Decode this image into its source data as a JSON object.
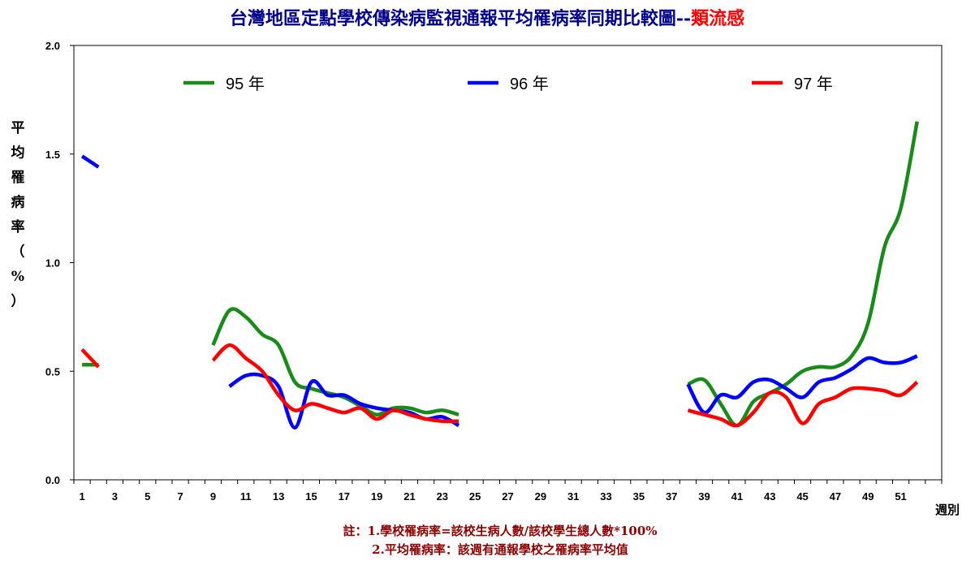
{
  "chart_data": {
    "type": "line",
    "title": "台灣地區定點學校傳染病監視通報平均罹病率同期比較圖--",
    "title_highlight": "類流感",
    "title_color": "#00008b",
    "title_highlight_color": "#ff0000",
    "ylabel_chars": [
      "平",
      "均",
      "罹",
      "病",
      "率",
      "（",
      "%",
      "）"
    ],
    "xlabel": "週別",
    "ylim": [
      0,
      2.0
    ],
    "yticks": [
      "0.0",
      "0.5",
      "1.0",
      "1.5",
      "2.0"
    ],
    "ytick_values": [
      0,
      0.5,
      1.0,
      1.5,
      2.0
    ],
    "xlim": [
      0.5,
      53.5
    ],
    "xticks": [
      1,
      3,
      5,
      7,
      9,
      11,
      13,
      15,
      17,
      19,
      21,
      23,
      25,
      27,
      29,
      31,
      33,
      35,
      37,
      39,
      41,
      43,
      45,
      47,
      49,
      51
    ],
    "grid": false,
    "legend_placement": "top",
    "series": [
      {
        "name": "95 年",
        "color": "#1a8a1a",
        "segments": [
          [
            [
              1,
              0.53
            ],
            [
              2,
              0.53
            ]
          ],
          [
            [
              9,
              0.62
            ],
            [
              10,
              0.78
            ],
            [
              11,
              0.75
            ],
            [
              12,
              0.67
            ],
            [
              13,
              0.62
            ],
            [
              14,
              0.45
            ],
            [
              15,
              0.42
            ],
            [
              16,
              0.4
            ],
            [
              17,
              0.38
            ],
            [
              18,
              0.34
            ],
            [
              19,
              0.3
            ],
            [
              20,
              0.33
            ],
            [
              21,
              0.33
            ],
            [
              22,
              0.31
            ],
            [
              23,
              0.32
            ],
            [
              24,
              0.3
            ]
          ],
          [
            [
              38,
              0.44
            ],
            [
              39,
              0.46
            ],
            [
              40,
              0.35
            ],
            [
              41,
              0.25
            ],
            [
              42,
              0.36
            ],
            [
              43,
              0.4
            ],
            [
              44,
              0.44
            ],
            [
              45,
              0.5
            ],
            [
              46,
              0.52
            ],
            [
              47,
              0.52
            ],
            [
              48,
              0.57
            ],
            [
              49,
              0.72
            ],
            [
              50,
              1.07
            ],
            [
              51,
              1.25
            ],
            [
              52,
              1.65
            ]
          ]
        ]
      },
      {
        "name": "96 年",
        "color": "#0000ff",
        "segments": [
          [
            [
              1,
              1.49
            ],
            [
              2,
              1.44
            ]
          ],
          [
            [
              10,
              0.43
            ],
            [
              11,
              0.48
            ],
            [
              12,
              0.48
            ],
            [
              13,
              0.43
            ],
            [
              14,
              0.24
            ],
            [
              15,
              0.45
            ],
            [
              16,
              0.39
            ],
            [
              17,
              0.39
            ],
            [
              18,
              0.35
            ],
            [
              19,
              0.33
            ],
            [
              20,
              0.32
            ],
            [
              21,
              0.31
            ],
            [
              22,
              0.28
            ],
            [
              23,
              0.29
            ],
            [
              24,
              0.25
            ]
          ],
          [
            [
              38,
              0.44
            ],
            [
              39,
              0.31
            ],
            [
              40,
              0.39
            ],
            [
              41,
              0.38
            ],
            [
              42,
              0.45
            ],
            [
              43,
              0.46
            ],
            [
              44,
              0.42
            ],
            [
              45,
              0.38
            ],
            [
              46,
              0.45
            ],
            [
              47,
              0.47
            ],
            [
              48,
              0.51
            ],
            [
              49,
              0.56
            ],
            [
              50,
              0.54
            ],
            [
              51,
              0.54
            ],
            [
              52,
              0.57
            ]
          ]
        ]
      },
      {
        "name": "97 年",
        "color": "#ff0000",
        "segments": [
          [
            [
              1,
              0.6
            ],
            [
              2,
              0.52
            ]
          ],
          [
            [
              9,
              0.55
            ],
            [
              10,
              0.62
            ],
            [
              11,
              0.56
            ],
            [
              12,
              0.5
            ],
            [
              13,
              0.39
            ],
            [
              14,
              0.32
            ],
            [
              15,
              0.35
            ],
            [
              16,
              0.33
            ],
            [
              17,
              0.31
            ],
            [
              18,
              0.33
            ],
            [
              19,
              0.28
            ],
            [
              20,
              0.32
            ],
            [
              21,
              0.3
            ],
            [
              22,
              0.28
            ],
            [
              23,
              0.27
            ],
            [
              24,
              0.27
            ]
          ],
          [
            [
              38,
              0.32
            ],
            [
              39,
              0.3
            ],
            [
              40,
              0.28
            ],
            [
              41,
              0.25
            ],
            [
              42,
              0.31
            ],
            [
              43,
              0.4
            ],
            [
              44,
              0.38
            ],
            [
              45,
              0.26
            ],
            [
              46,
              0.35
            ],
            [
              47,
              0.38
            ],
            [
              48,
              0.42
            ],
            [
              49,
              0.42
            ],
            [
              50,
              0.41
            ],
            [
              51,
              0.39
            ],
            [
              52,
              0.45
            ]
          ]
        ]
      }
    ],
    "notes": [
      "註：1.學校罹病率=該校生病人數/該校學生總人數*100%",
      "2.平均罹病率：該週有通報學校之罹病率平均值"
    ]
  }
}
